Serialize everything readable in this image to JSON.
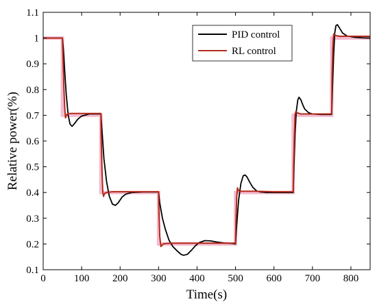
{
  "chart_data": {
    "type": "line",
    "title": "",
    "xlabel": "Time(s)",
    "ylabel": "Relative power(%)",
    "xlim": [
      0,
      850
    ],
    "ylim": [
      0.1,
      1.1
    ],
    "xticks": [
      0,
      100,
      200,
      300,
      400,
      500,
      600,
      700,
      800
    ],
    "yticks": [
      0.1,
      0.2,
      0.3,
      0.4,
      0.5,
      0.6,
      0.7,
      0.8,
      0.9,
      1,
      1.1
    ],
    "xtick_labels": [
      "0",
      "100",
      "200",
      "300",
      "400",
      "500",
      "600",
      "700",
      "800"
    ],
    "ytick_labels": [
      "0.1",
      "0.2",
      "0.3",
      "0.4",
      "0.5",
      "0.6",
      "0.7",
      "0.8",
      "0.9",
      "1",
      "1.1"
    ],
    "grid": false,
    "legend_position": "top-right",
    "reference": {
      "description": "light pink setpoint step",
      "color": "#f4bcd0",
      "x": [
        0,
        50,
        50,
        150,
        150,
        300,
        300,
        500,
        500,
        650,
        650,
        750,
        750,
        850
      ],
      "y": [
        1.0,
        1.0,
        0.7,
        0.7,
        0.4,
        0.4,
        0.2,
        0.2,
        0.4,
        0.4,
        0.7,
        0.7,
        1.0,
        1.0
      ]
    },
    "series": [
      {
        "name": "PID control",
        "color": "#000000",
        "x": [
          0,
          50,
          53,
          56,
          60,
          65,
          70,
          75,
          80,
          90,
          100,
          120,
          150,
          153,
          158,
          165,
          172,
          180,
          188,
          195,
          205,
          215,
          230,
          260,
          300,
          303,
          310,
          318,
          327,
          337,
          347,
          358,
          365,
          375,
          385,
          395,
          405,
          420,
          435,
          450,
          470,
          490,
          500,
          503,
          508,
          514,
          520,
          525,
          530,
          537,
          545,
          555,
          565,
          580,
          600,
          630,
          650,
          652,
          655,
          658,
          662,
          665,
          670,
          675,
          680,
          690,
          700,
          720,
          750,
          752,
          755,
          758,
          761,
          765,
          770,
          778,
          790,
          810,
          830,
          850
        ],
        "y": [
          1.0,
          1.0,
          0.95,
          0.87,
          0.78,
          0.7,
          0.665,
          0.657,
          0.665,
          0.685,
          0.697,
          0.705,
          0.705,
          0.64,
          0.53,
          0.44,
          0.385,
          0.355,
          0.35,
          0.36,
          0.382,
          0.394,
          0.4,
          0.402,
          0.402,
          0.36,
          0.3,
          0.255,
          0.215,
          0.19,
          0.175,
          0.16,
          0.156,
          0.16,
          0.175,
          0.192,
          0.205,
          0.213,
          0.212,
          0.208,
          0.204,
          0.202,
          0.2,
          0.27,
          0.37,
          0.435,
          0.465,
          0.468,
          0.46,
          0.44,
          0.42,
          0.406,
          0.402,
          0.4,
          0.4,
          0.4,
          0.4,
          0.5,
          0.63,
          0.715,
          0.76,
          0.77,
          0.76,
          0.74,
          0.724,
          0.71,
          0.705,
          0.703,
          0.703,
          0.8,
          0.93,
          1.02,
          1.048,
          1.052,
          1.04,
          1.02,
          1.008,
          1.003,
          1.001,
          1.0
        ]
      },
      {
        "name": "RL control",
        "color": "#b22a1a",
        "x": [
          0,
          50,
          52,
          54,
          56,
          58,
          60,
          65,
          75,
          100,
          150,
          151,
          153,
          155,
          157,
          158,
          160,
          165,
          180,
          200,
          300,
          301,
          303,
          306,
          308,
          312,
          320,
          340,
          360,
          400,
          450,
          500,
          501,
          503,
          505,
          507,
          510,
          520,
          550,
          600,
          650,
          651,
          653,
          655,
          657,
          660,
          670,
          700,
          750,
          751,
          753,
          755,
          757,
          760,
          770,
          800,
          850
        ],
        "y": [
          1.0,
          1.0,
          0.9,
          0.8,
          0.73,
          0.69,
          0.7,
          0.707,
          0.707,
          0.707,
          0.707,
          0.6,
          0.48,
          0.4,
          0.385,
          0.39,
          0.397,
          0.4,
          0.403,
          0.403,
          0.403,
          0.32,
          0.23,
          0.19,
          0.193,
          0.2,
          0.202,
          0.203,
          0.203,
          0.203,
          0.203,
          0.203,
          0.28,
          0.38,
          0.418,
          0.41,
          0.405,
          0.405,
          0.405,
          0.403,
          0.403,
          0.5,
          0.62,
          0.705,
          0.715,
          0.71,
          0.705,
          0.705,
          0.705,
          0.85,
          0.96,
          1.015,
          1.012,
          1.01,
          1.007,
          1.007,
          1.007
        ]
      }
    ]
  }
}
